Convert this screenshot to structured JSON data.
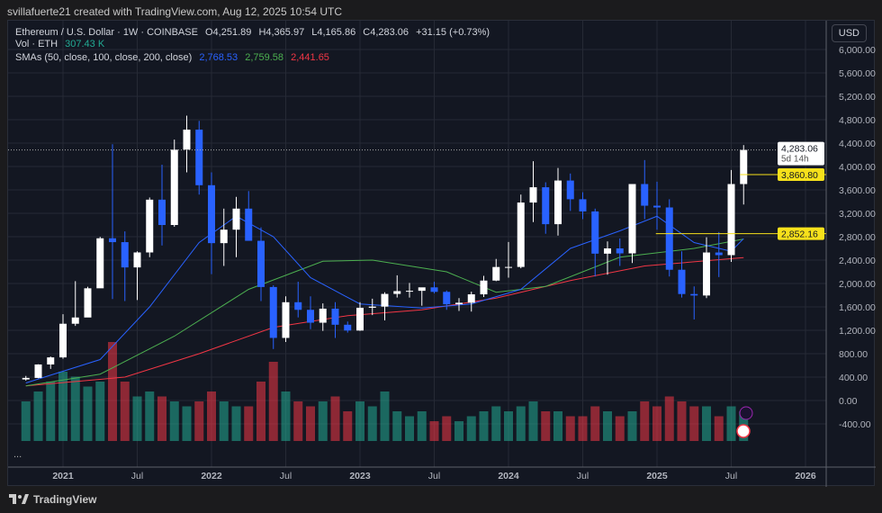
{
  "header": {
    "created": "svillafuerte21 created with TradingView.com, Aug 12, 2025 10:54 UTC"
  },
  "legend": {
    "symbol": "Ethereum / U.S. Dollar · 1W · COINBASE",
    "open": "O4,251.89",
    "high": "H4,365.97",
    "low": "L4,165.86",
    "close": "C4,283.06",
    "change": "+31.15 (+0.73%)",
    "vol_label": "Vol · ETH",
    "vol_value": "307.43 K",
    "sma_label": "SMAs (50, close, 100, close, 200, close)",
    "sma50": "2,768.53",
    "sma100": "2,759.58",
    "sma200": "2,441.65"
  },
  "currency_button": "USD",
  "more": "...",
  "footer": {
    "brand": "TradingView"
  },
  "colors": {
    "up": "#ffffff",
    "down": "#2962ff",
    "sma50": "#2962ff",
    "sma100": "#4caf50",
    "sma200": "#f23645",
    "level": "#f7e11b",
    "vol_up": "#22ab94",
    "vol_down": "#f23645"
  },
  "chart_data": {
    "type": "candlestick",
    "interval": "1W (approximated monthly)",
    "ylim": [
      -600,
      6300
    ],
    "y_ticks": [
      "6,000.00",
      "5,600.00",
      "5,200.00",
      "4,800.00",
      "4,400.00",
      "4,000.00",
      "3,600.00",
      "3,200.00",
      "2,800.00",
      "2,400.00",
      "2,000.00",
      "1,600.00",
      "1,200.00",
      "800.00",
      "400.00",
      "0.00",
      "-400.00"
    ],
    "y_tick_values": [
      6000,
      5600,
      5200,
      4800,
      4400,
      4000,
      3600,
      3200,
      2800,
      2400,
      2000,
      1600,
      1200,
      800,
      400,
      0,
      -400
    ],
    "x_ticks": [
      {
        "label": "2021",
        "m": 3,
        "bold": true
      },
      {
        "label": "Jul",
        "m": 9
      },
      {
        "label": "2022",
        "m": 15,
        "bold": true
      },
      {
        "label": "Jul",
        "m": 21
      },
      {
        "label": "2023",
        "m": 27,
        "bold": true
      },
      {
        "label": "Jul",
        "m": 33
      },
      {
        "label": "2024",
        "m": 39,
        "bold": true
      },
      {
        "label": "Jul",
        "m": 45
      },
      {
        "label": "2025",
        "m": 51,
        "bold": true
      },
      {
        "label": "Jul",
        "m": 57
      },
      {
        "label": "2026",
        "m": 63,
        "bold": true
      }
    ],
    "ohlc": [
      [
        360,
        420,
        340,
        386
      ],
      [
        386,
        620,
        380,
        616
      ],
      [
        616,
        752,
        540,
        737
      ],
      [
        737,
        1475,
        714,
        1312
      ],
      [
        1312,
        2040,
        1275,
        1419
      ],
      [
        1419,
        1945,
        1427,
        1918
      ],
      [
        1918,
        2797,
        1937,
        2773
      ],
      [
        2773,
        4380,
        1735,
        2707
      ],
      [
        2707,
        2891,
        1700,
        2275
      ],
      [
        2275,
        2550,
        1718,
        2531
      ],
      [
        2531,
        3470,
        2450,
        3433
      ],
      [
        3433,
        4030,
        2650,
        3000
      ],
      [
        3000,
        4460,
        2970,
        4288
      ],
      [
        4288,
        4870,
        3900,
        4630
      ],
      [
        4630,
        4780,
        3520,
        3680
      ],
      [
        3680,
        3900,
        2160,
        2690
      ],
      [
        2690,
        3280,
        2300,
        2920
      ],
      [
        2920,
        3480,
        2450,
        3280
      ],
      [
        3280,
        3580,
        2780,
        2730
      ],
      [
        2730,
        2960,
        1700,
        1940
      ],
      [
        1940,
        1970,
        880,
        1070
      ],
      [
        1070,
        1780,
        1000,
        1680
      ],
      [
        1680,
        2030,
        1420,
        1550
      ],
      [
        1550,
        1780,
        1220,
        1330
      ],
      [
        1330,
        1660,
        1190,
        1570
      ],
      [
        1570,
        1680,
        1070,
        1295
      ],
      [
        1295,
        1350,
        1160,
        1196
      ],
      [
        1196,
        1680,
        1190,
        1585
      ],
      [
        1585,
        1740,
        1460,
        1605
      ],
      [
        1605,
        1850,
        1370,
        1822
      ],
      [
        1822,
        2140,
        1760,
        1870
      ],
      [
        1870,
        2010,
        1760,
        1875
      ],
      [
        1875,
        1930,
        1620,
        1934
      ],
      [
        1934,
        2030,
        1830,
        1857
      ],
      [
        1857,
        1880,
        1550,
        1645
      ],
      [
        1645,
        1750,
        1530,
        1671
      ],
      [
        1671,
        1860,
        1520,
        1815
      ],
      [
        1815,
        2130,
        1770,
        2050
      ],
      [
        2050,
        2420,
        2040,
        2282
      ],
      [
        2282,
        2710,
        2100,
        2283
      ],
      [
        2283,
        3520,
        2260,
        3384
      ],
      [
        3384,
        4090,
        3050,
        3645
      ],
      [
        3645,
        3730,
        2850,
        3014
      ],
      [
        3014,
        3975,
        2820,
        3760
      ],
      [
        3760,
        3880,
        3240,
        3440
      ],
      [
        3440,
        3560,
        3100,
        3232
      ],
      [
        3232,
        3280,
        2120,
        2510
      ],
      [
        2510,
        2720,
        2150,
        2600
      ],
      [
        2600,
        2770,
        2300,
        2515
      ],
      [
        2515,
        3690,
        2350,
        3700
      ],
      [
        3700,
        4110,
        3100,
        3330
      ],
      [
        3330,
        3740,
        2920,
        3300
      ],
      [
        3300,
        3440,
        2120,
        2235
      ],
      [
        2235,
        2550,
        1760,
        1820
      ],
      [
        1820,
        1950,
        1385,
        1795
      ],
      [
        1795,
        2790,
        1750,
        2530
      ],
      [
        2530,
        2880,
        2110,
        2485
      ],
      [
        2485,
        3940,
        2370,
        3700
      ],
      [
        3700,
        4366,
        3350,
        4283
      ]
    ],
    "volume_k_eth": [
      400,
      500,
      600,
      700,
      650,
      550,
      600,
      1000,
      600,
      450,
      500,
      450,
      400,
      350,
      400,
      500,
      400,
      350,
      350,
      600,
      800,
      500,
      400,
      350,
      400,
      450,
      300,
      400,
      350,
      500,
      300,
      250,
      300,
      200,
      250,
      200,
      250,
      300,
      350,
      300,
      350,
      400,
      300,
      300,
      250,
      250,
      350,
      300,
      250,
      300,
      400,
      350,
      450,
      400,
      350,
      350,
      250,
      350,
      300
    ],
    "sma50": [
      [
        0,
        300
      ],
      [
        6,
        700
      ],
      [
        10,
        1600
      ],
      [
        14,
        2700
      ],
      [
        17,
        3150
      ],
      [
        20,
        2800
      ],
      [
        23,
        2100
      ],
      [
        27,
        1650
      ],
      [
        32,
        1580
      ],
      [
        36,
        1650
      ],
      [
        40,
        1900
      ],
      [
        44,
        2600
      ],
      [
        48,
        2900
      ],
      [
        51,
        3150
      ],
      [
        54,
        2700
      ],
      [
        57,
        2550
      ],
      [
        58,
        2768.53
      ]
    ],
    "sma100": [
      [
        0,
        250
      ],
      [
        6,
        450
      ],
      [
        12,
        1100
      ],
      [
        18,
        1900
      ],
      [
        24,
        2380
      ],
      [
        28,
        2400
      ],
      [
        34,
        2200
      ],
      [
        38,
        1850
      ],
      [
        42,
        1950
      ],
      [
        48,
        2450
      ],
      [
        54,
        2600
      ],
      [
        58,
        2759.58
      ]
    ],
    "sma200": [
      [
        0,
        250
      ],
      [
        8,
        400
      ],
      [
        14,
        800
      ],
      [
        20,
        1250
      ],
      [
        26,
        1450
      ],
      [
        32,
        1550
      ],
      [
        38,
        1750
      ],
      [
        44,
        2050
      ],
      [
        50,
        2300
      ],
      [
        58,
        2441.65
      ]
    ],
    "levels": [
      {
        "label": "3,860.80",
        "value": 3860.8,
        "from_m": 58
      },
      {
        "label": "2,852.16",
        "value": 2852.16,
        "from_m": 51.2
      }
    ],
    "last_price": {
      "label": "4,283.06",
      "countdown": "5d 14h",
      "value": 4283.06
    }
  }
}
